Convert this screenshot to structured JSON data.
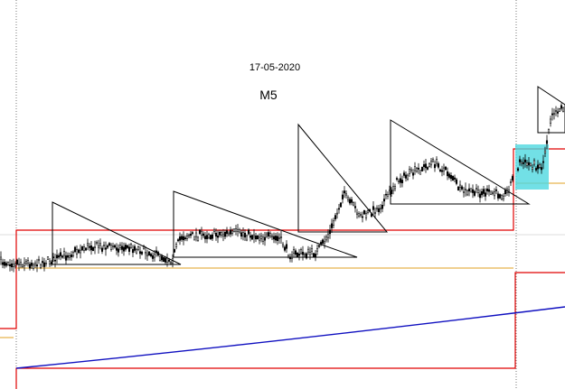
{
  "date_label": "17-05-2020",
  "timeframe": "M5"
}
